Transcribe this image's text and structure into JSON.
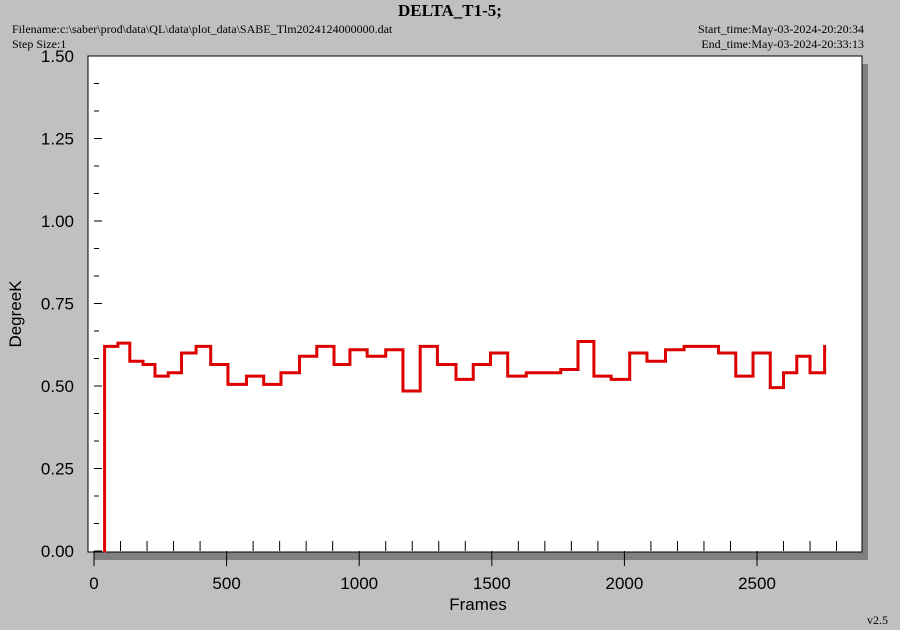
{
  "header": {
    "title": "DELTA_T1-5;",
    "filename_label": "Filename:c:\\saber\\prod\\data\\QL\\data\\plot_data\\SABE_Tlm2024124000000.dat",
    "step_size_label": "Step Size:1",
    "start_time_label": "Start_time:May-03-2024-20:20:34",
    "end_time_label": "End_time:May-03-2024-20:33:13"
  },
  "footer": {
    "version": "v2.5"
  },
  "colors": {
    "background": "#c0c0c0",
    "plot_area": "#ffffff",
    "series": "#dd0000",
    "shadow": "#808080"
  },
  "chart_data": {
    "type": "line",
    "step": true,
    "xlabel": "Frames",
    "ylabel": "DegreeK",
    "xlim": [
      0,
      2900
    ],
    "ylim": [
      0,
      1.5
    ],
    "xticks": [
      0,
      500,
      1000,
      1500,
      2000,
      2500
    ],
    "xtick_labels": [
      "0",
      "500",
      "1000",
      "1500",
      "2000",
      "2500"
    ],
    "yticks": [
      0,
      0.25,
      0.5,
      0.75,
      1.0,
      1.25,
      1.5
    ],
    "ytick_labels": [
      "0.00",
      "0.25",
      "0.50",
      "0.75",
      "1.00",
      "1.25",
      "1.50"
    ],
    "grid": false,
    "series": [
      {
        "x": [
          35,
          40,
          90,
          135,
          185,
          230,
          280,
          330,
          385,
          440,
          505,
          575,
          640,
          705,
          775,
          840,
          905,
          965,
          1030,
          1100,
          1165,
          1230,
          1295,
          1365,
          1430,
          1495,
          1560,
          1630,
          1695,
          1760,
          1825,
          1885,
          1950,
          2020,
          2085,
          2155,
          2225,
          2290,
          2355,
          2420,
          2485,
          2550,
          2600,
          2650,
          2700,
          2755,
          2760
        ],
        "y": [
          0.0,
          0.62,
          0.63,
          0.575,
          0.565,
          0.53,
          0.54,
          0.6,
          0.62,
          0.565,
          0.505,
          0.53,
          0.505,
          0.54,
          0.59,
          0.62,
          0.565,
          0.61,
          0.59,
          0.61,
          0.485,
          0.62,
          0.565,
          0.52,
          0.565,
          0.6,
          0.53,
          0.54,
          0.54,
          0.55,
          0.635,
          0.53,
          0.52,
          0.6,
          0.575,
          0.61,
          0.62,
          0.62,
          0.6,
          0.53,
          0.6,
          0.495,
          0.54,
          0.59,
          0.54,
          0.62,
          0.62
        ]
      }
    ]
  }
}
